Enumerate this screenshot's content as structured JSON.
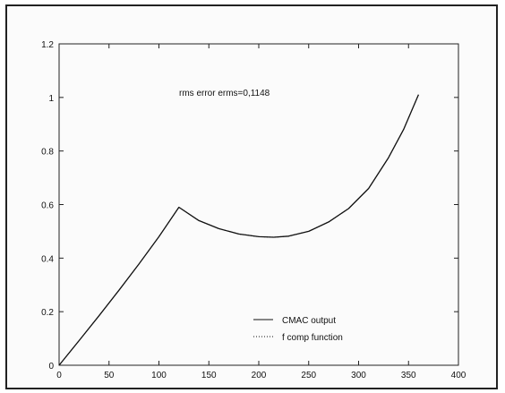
{
  "chart_data": {
    "type": "line",
    "title": "",
    "xlabel": "",
    "ylabel": "",
    "xlim": [
      0,
      400
    ],
    "ylim": [
      0,
      1.2
    ],
    "x_ticks": [
      0,
      50,
      100,
      150,
      200,
      250,
      300,
      350,
      400
    ],
    "y_ticks": [
      0,
      0.2,
      0.4,
      0.6,
      0.8,
      1,
      1.2
    ],
    "x_tick_labels": [
      "0",
      "50",
      "100",
      "150",
      "200",
      "250",
      "300",
      "350",
      "400"
    ],
    "y_tick_labels": [
      "0",
      "0.2",
      "0.4",
      "0.6",
      "0.8",
      "1",
      "1.2"
    ],
    "grid": false,
    "legend_position": "bottom-center",
    "annotation": "rms error erms=0,1148",
    "series": [
      {
        "name": "CMAC output",
        "style": "solid",
        "x": [
          0,
          20,
          40,
          60,
          80,
          100,
          120,
          140,
          160,
          180,
          200,
          215,
          230,
          250,
          270,
          290,
          310,
          330,
          345,
          360
        ],
        "y": [
          0,
          0.092,
          0.185,
          0.28,
          0.378,
          0.48,
          0.59,
          0.54,
          0.51,
          0.49,
          0.48,
          0.478,
          0.482,
          0.5,
          0.535,
          0.585,
          0.66,
          0.775,
          0.88,
          1.01
        ]
      },
      {
        "name": "f comp function",
        "style": "dotted",
        "x": [
          0,
          20,
          40,
          60,
          80,
          100,
          120,
          140,
          160,
          180,
          200,
          215,
          230,
          250,
          270,
          290,
          310,
          330,
          345,
          360
        ],
        "y": [
          0,
          0.092,
          0.185,
          0.28,
          0.378,
          0.48,
          0.59,
          0.54,
          0.51,
          0.49,
          0.48,
          0.478,
          0.482,
          0.5,
          0.535,
          0.585,
          0.66,
          0.775,
          0.88,
          1.01
        ]
      }
    ],
    "colors": {
      "line": "#111111",
      "axis": "#222222"
    }
  }
}
